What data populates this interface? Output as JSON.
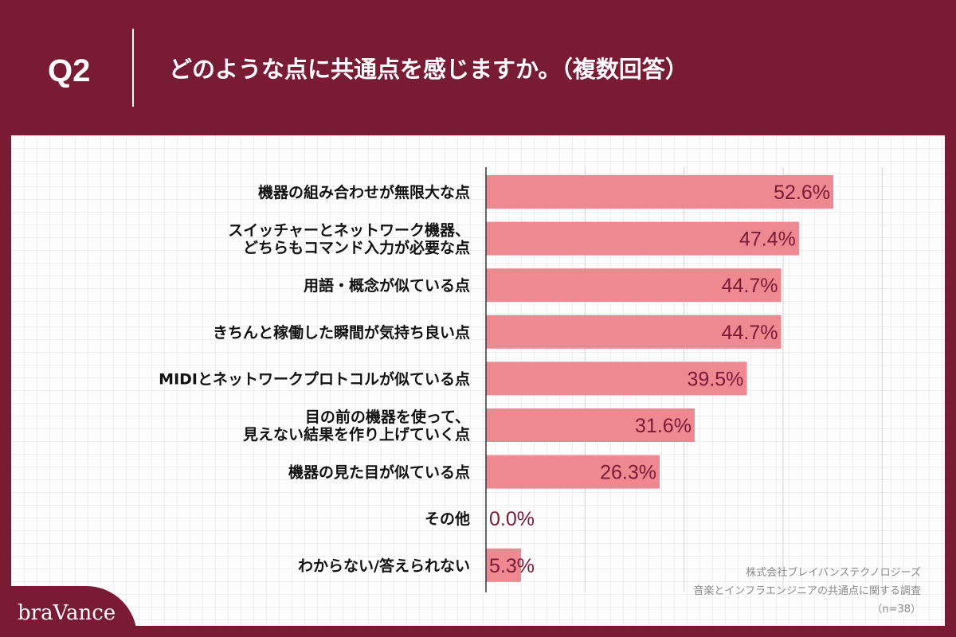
{
  "header": {
    "question_number": "Q2",
    "title": "どのような点に共通点を感じますか。（複数回答）"
  },
  "source": {
    "company": "株式会社ブレイバンステクノロジーズ",
    "survey": "音楽とインフラエンジニアの共通点に関する調査",
    "sample": "（n=38）"
  },
  "logo": {
    "text": "braVance"
  },
  "colors": {
    "background": "#7a1b36",
    "bar": "#ee8891",
    "value_label": "#7a1b36",
    "category_label": "#111111",
    "axis": "#333333",
    "gridline": "#d4d4d4"
  },
  "chart_data": {
    "type": "bar",
    "orientation": "horizontal",
    "categories": [
      "機器の組み合わせが無限大な点",
      "スイッチャーとネットワーク機器、\nどちらもコマンド入力が必要な点",
      "用語・概念が似ている点",
      "きちんと稼働した瞬間が気持ち良い点",
      "MIDIとネットワークプロトコルが似ている点",
      "目の前の機器を使って、\n見えない結果を作り上げていく点",
      "機器の見た目が似ている点",
      "その他",
      "わからない/答えられない"
    ],
    "values": [
      52.6,
      47.4,
      44.7,
      44.7,
      39.5,
      31.6,
      26.3,
      0.0,
      5.3
    ],
    "value_labels": [
      "52.6%",
      "47.4%",
      "44.7%",
      "44.7%",
      "39.5%",
      "31.6%",
      "26.3%",
      "0.0%",
      "5.3%"
    ],
    "xlim": [
      0,
      60
    ],
    "gridlines_at": [
      15,
      30,
      45,
      60
    ],
    "grid": true,
    "legend": "none"
  }
}
